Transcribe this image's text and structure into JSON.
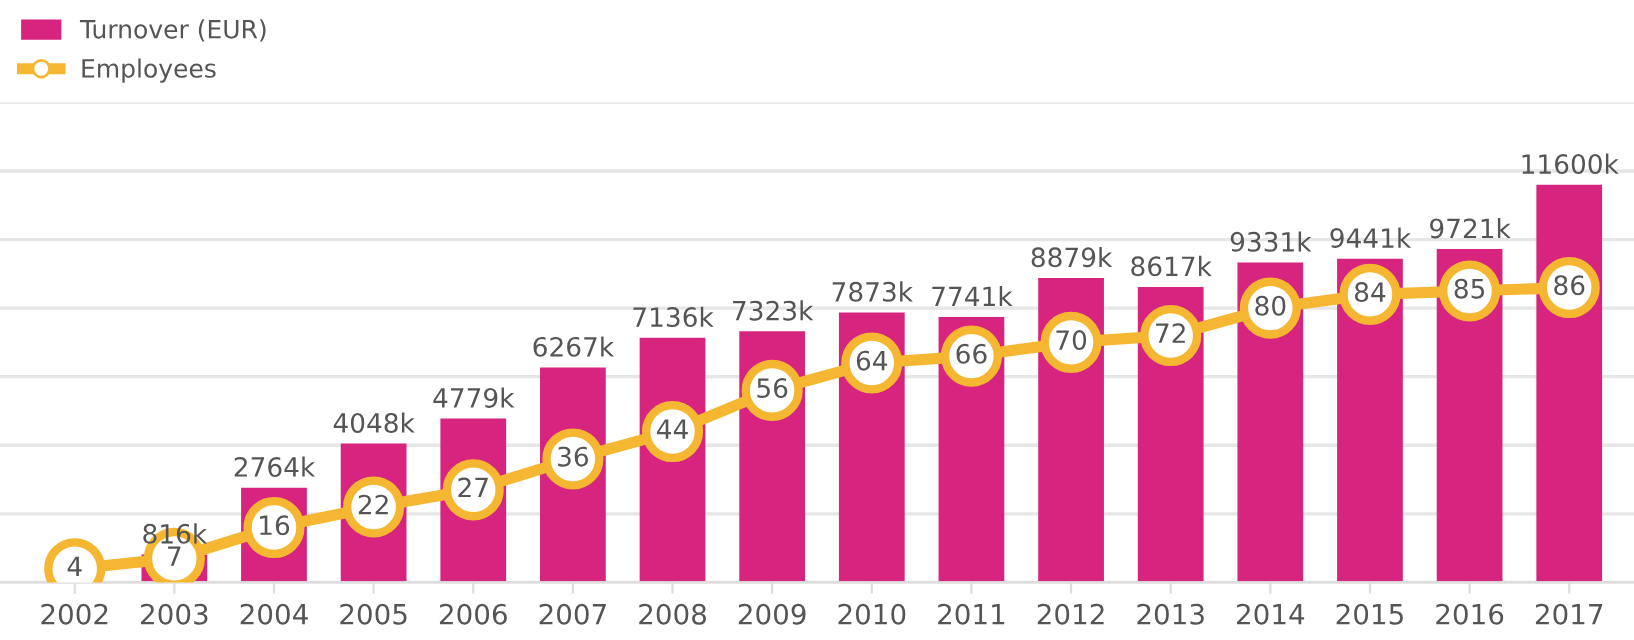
{
  "chart_data": {
    "type": "bar",
    "categories": [
      "2002",
      "2003",
      "2004",
      "2005",
      "2006",
      "2007",
      "2008",
      "2009",
      "2010",
      "2011",
      "2012",
      "2013",
      "2014",
      "2015",
      "2016",
      "2017"
    ],
    "series": [
      {
        "name": "Turnover (EUR)",
        "color": "#d6247f",
        "values": [
          null,
          816,
          2764,
          4048,
          4779,
          6267,
          7136,
          7323,
          7873,
          7741,
          8879,
          8617,
          9331,
          9441,
          9721,
          11600
        ],
        "value_labels": [
          null,
          "816k",
          "2764k",
          "4048k",
          "4779k",
          "6267k",
          "7136k",
          "7323k",
          "7873k",
          "7741k",
          "8879k",
          "8617k",
          "9331k",
          "9441k",
          "9721k",
          "11600k"
        ]
      },
      {
        "name": "Employees",
        "type": "line",
        "axis": "y2",
        "color": "#f5b731",
        "marker": "circle",
        "line_style": "solid",
        "values": [
          4,
          7,
          16,
          22,
          27,
          36,
          44,
          56,
          64,
          66,
          70,
          72,
          80,
          84,
          85,
          86
        ],
        "value_labels": [
          "4",
          "7",
          "16",
          "22",
          "27",
          "36",
          "44",
          "56",
          "64",
          "66",
          "70",
          "72",
          "80",
          "84",
          "85",
          "86"
        ]
      }
    ],
    "ylim": [
      0,
      14000
    ],
    "yticks": [
      {
        "value": 0,
        "label": null
      },
      {
        "value": 2000,
        "label": null
      },
      {
        "value": 4000,
        "label": null
      },
      {
        "value": 6000,
        "label": null
      },
      {
        "value": 8000,
        "label": null
      },
      {
        "value": 10000,
        "label": null
      },
      {
        "value": 12000,
        "label": null
      },
      {
        "value": 14000,
        "label": null
      }
    ],
    "y2lim": [
      0,
      140
    ],
    "tick_labels": "x",
    "grid": "y",
    "legend": "top left"
  }
}
